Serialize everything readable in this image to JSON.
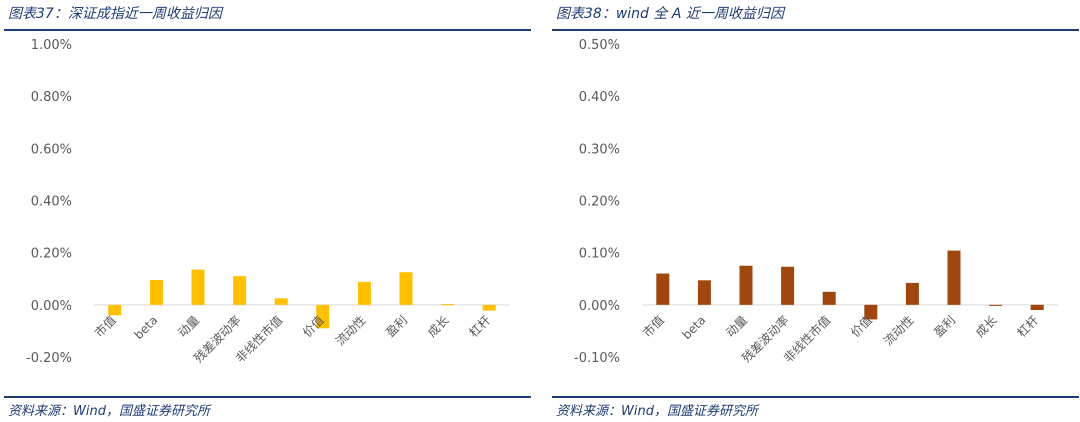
{
  "charts": [
    {
      "title": "图表37：深证成指近一周收益归因",
      "source": "资料来源：Wind，国盛证券研究所",
      "color": "#FFC000"
    },
    {
      "title": "图表38：wind 全 A 近一周收益归因",
      "source": "资料来源：Wind，国盛证券研究所",
      "color": "#A0470F"
    }
  ],
  "chart_data": [
    {
      "type": "bar",
      "title": "图表37：深证成指近一周收益归因",
      "categories": [
        "市值",
        "beta",
        "动量",
        "残差波动率",
        "非线性市值",
        "价值",
        "流动性",
        "盈利",
        "成长",
        "杠杆"
      ],
      "values": [
        -0.04,
        0.095,
        0.135,
        0.11,
        0.025,
        -0.09,
        0.088,
        0.125,
        0.003,
        -0.022
      ],
      "ylim": [
        -0.2,
        1.0
      ],
      "yticks": [
        -0.2,
        0.0,
        0.2,
        0.4,
        0.6,
        0.8,
        1.0
      ],
      "ytick_labels": [
        "-0.20%",
        "0.00%",
        "0.20%",
        "0.40%",
        "0.60%",
        "0.80%",
        "1.00%"
      ],
      "unit": "%",
      "grid": false,
      "xlabel": "",
      "ylabel": ""
    },
    {
      "type": "bar",
      "title": "图表38：wind 全 A 近一周收益归因",
      "categories": [
        "市值",
        "beta",
        "动量",
        "残差波动率",
        "非线性市值",
        "价值",
        "流动性",
        "盈利",
        "成长",
        "杠杆"
      ],
      "values": [
        0.06,
        0.047,
        0.075,
        0.073,
        0.025,
        -0.028,
        0.042,
        0.104,
        -0.002,
        -0.01
      ],
      "ylim": [
        -0.1,
        0.5
      ],
      "yticks": [
        -0.1,
        0.0,
        0.1,
        0.2,
        0.3,
        0.4,
        0.5
      ],
      "ytick_labels": [
        "-0.10%",
        "0.00%",
        "0.10%",
        "0.20%",
        "0.30%",
        "0.40%",
        "0.50%"
      ],
      "unit": "%",
      "grid": false,
      "xlabel": "",
      "ylabel": ""
    }
  ]
}
